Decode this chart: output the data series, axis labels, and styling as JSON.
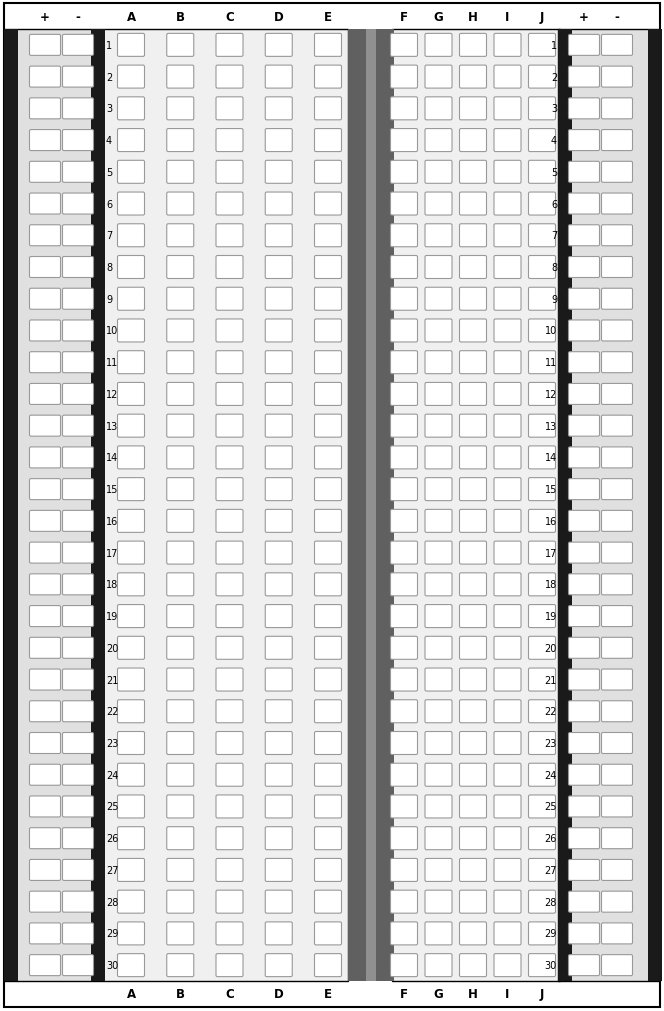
{
  "fig_width": 6.64,
  "fig_height": 10.12,
  "dpi": 100,
  "num_rows": 30,
  "col_labels_left": [
    "A",
    "B",
    "C",
    "D",
    "E"
  ],
  "col_labels_right": [
    "F",
    "G",
    "H",
    "I",
    "J"
  ],
  "bg_color": "#ffffff",
  "board_bg": "#f0f0f0",
  "rail_bg": "#e0e0e0",
  "hole_fill": "#ffffff",
  "hole_edge": "#999999",
  "dark_bar": "#1a1a1a",
  "center_dark": "#606060",
  "center_mid": "#909090"
}
